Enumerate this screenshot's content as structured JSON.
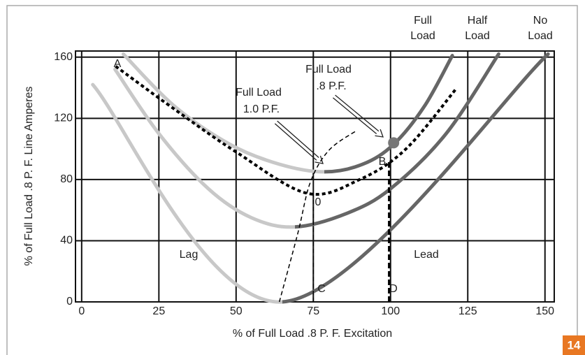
{
  "chart_data": {
    "type": "line",
    "xlabel": "% of Full Load .8 P. F. Excitation",
    "ylabel": "% of Full Load .8 P. F. Line Amperes",
    "xlim": [
      -2,
      153
    ],
    "ylim": [
      0,
      164
    ],
    "xticks": [
      0,
      25,
      50,
      75,
      100,
      125,
      150
    ],
    "yticks": [
      0,
      40,
      80,
      120,
      160
    ],
    "grid": true,
    "series": [
      {
        "name": [
          "Full Load"
        ],
        "color": "#666666",
        "lag_color": "#c8c8c8",
        "x": [
          13.5,
          30,
          48,
          64,
          78.5,
          91,
          101,
          111,
          120
        ],
        "values": [
          162,
          128,
          103,
          90,
          85,
          90,
          103,
          128,
          161
        ]
      },
      {
        "name": [
          "Half",
          "Load"
        ],
        "color": "#666666",
        "lag_color": "#c8c8c8",
        "x": [
          10.8,
          25,
          41,
          55,
          69,
          86,
          100,
          118,
          135
        ],
        "values": [
          152,
          110,
          74,
          55,
          49,
          58,
          74,
          110,
          162
        ]
      },
      {
        "name": [
          "No",
          "Load"
        ],
        "color": "#666666",
        "lag_color": "#c8c8c8",
        "x": [
          3.6,
          65,
          151
        ],
        "values": [
          142,
          0,
          162
        ]
      }
    ],
    "dotted_curve": {
      "color": "#000000",
      "x": [
        11,
        30,
        50,
        73,
        90,
        105,
        121.5
      ],
      "values": [
        154,
        126,
        98,
        71,
        80,
        100,
        140
      ]
    },
    "pf_curve": {
      "color": "#000000",
      "x": [
        64,
        70,
        74,
        80,
        89
      ],
      "values": [
        0,
        45,
        78,
        99,
        112
      ]
    },
    "verticals": [
      {
        "x": [
          75,
          75
        ],
        "values": [
          0,
          71
        ]
      },
      {
        "x": [
          99.5,
          99.5
        ],
        "values": [
          0,
          93
        ]
      }
    ],
    "point": {
      "x": [
        101
      ],
      "values": [
        104
      ],
      "color": "#777777"
    },
    "labels": [
      "A",
      "B",
      "0",
      "C",
      "D",
      "Lag",
      "Lead"
    ],
    "callouts": [
      [
        "Full Load",
        "1.0 P.F."
      ],
      [
        "Full Load",
        ".8 P.F."
      ]
    ],
    "figure_number": "14"
  }
}
